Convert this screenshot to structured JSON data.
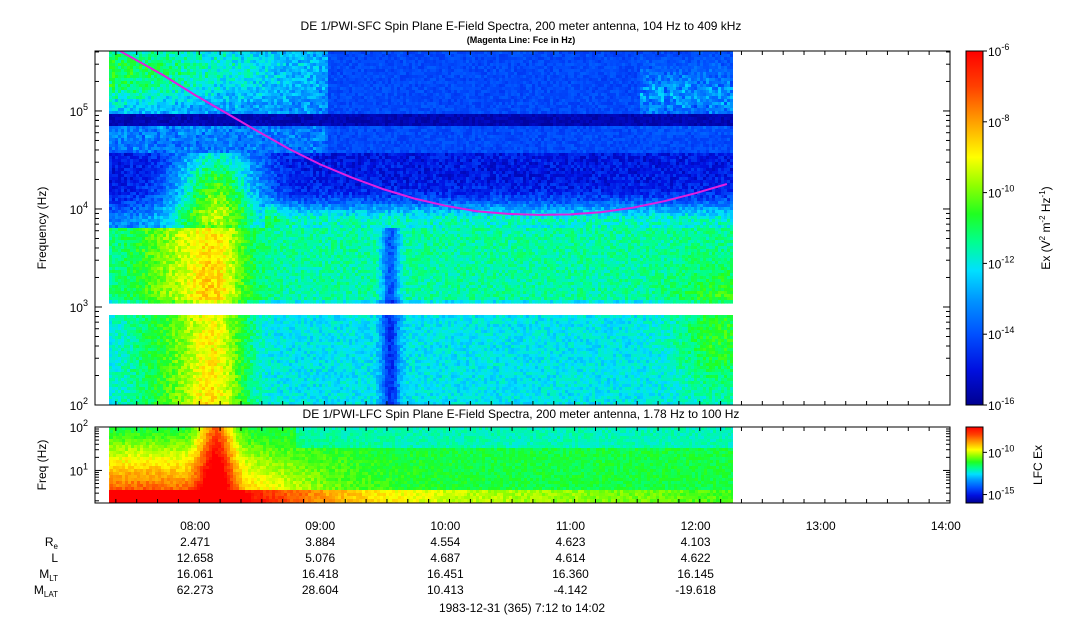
{
  "chart_data": [
    {
      "type": "heatmap",
      "title": "DE 1/PWI-SFC  Spin Plane E-Field Spectra, 200 meter antenna, 104 Hz to 409 kHz",
      "subtitle": "(Magenta Line: Fce in Hz)",
      "ylabel": "Frequency (Hz)",
      "yscale": "log",
      "ylim": [
        100,
        409000
      ],
      "yticks": [
        {
          "base": "10",
          "exp": "2",
          "value": 100
        },
        {
          "base": "10",
          "exp": "3",
          "value": 1000
        },
        {
          "base": "10",
          "exp": "4",
          "value": 10000
        },
        {
          "base": "10",
          "exp": "5",
          "value": 100000
        }
      ],
      "xlim": [
        "07:12",
        "14:02"
      ],
      "data_coverage": [
        "07:12",
        "12:17"
      ],
      "gap_frequency_hz": [
        870,
        1030
      ],
      "colorbar": {
        "label_base": "Ex (V",
        "label_exp1": "2",
        "label_mid": " m",
        "label_exp2": "-2",
        "label_mid2": " Hz",
        "label_exp3": "-1",
        "label_end": ")",
        "scale": "log",
        "range": [
          1e-16,
          1e-06
        ],
        "ticks": [
          {
            "base": "10",
            "exp": "-6",
            "value": 1e-06
          },
          {
            "base": "10",
            "exp": "-8",
            "value": 1e-08
          },
          {
            "base": "10",
            "exp": "-10",
            "value": 1e-10
          },
          {
            "base": "10",
            "exp": "-12",
            "value": 1e-12
          },
          {
            "base": "10",
            "exp": "-14",
            "value": 1e-14
          },
          {
            "base": "10",
            "exp": "-16",
            "value": 1e-16
          }
        ]
      },
      "fce_line": {
        "color": "#e020e0",
        "time": [
          "07:24",
          "07:45",
          "08:00",
          "08:15",
          "08:30",
          "08:45",
          "09:00",
          "09:15",
          "09:30",
          "09:45",
          "10:00",
          "10:15",
          "10:30",
          "10:45",
          "11:00",
          "11:15",
          "11:30",
          "11:45",
          "12:00",
          "12:15"
        ],
        "freq_hz": [
          409000,
          230000,
          145000,
          95000,
          62000,
          41000,
          28500,
          21000,
          16000,
          12800,
          10800,
          9500,
          8900,
          8700,
          8800,
          9300,
          10300,
          12000,
          14500,
          18000
        ]
      }
    },
    {
      "type": "heatmap",
      "title": "DE 1/PWI-LFC  Spin Plane E-Field Spectra, 200 meter antenna, 1.78 Hz to 100 Hz",
      "ylabel": "Freq (Hz)",
      "yscale": "log",
      "ylim": [
        1.78,
        100
      ],
      "yticks": [
        {
          "base": "10",
          "exp": "1",
          "value": 10
        },
        {
          "base": "10",
          "exp": "2",
          "value": 100
        }
      ],
      "xlim": [
        "07:12",
        "14:02"
      ],
      "data_coverage": [
        "07:12",
        "12:17"
      ],
      "colorbar": {
        "label": "LFC Ex",
        "scale": "log",
        "range": [
          1e-16,
          1e-07
        ],
        "ticks": [
          {
            "base": "10",
            "exp": "-10",
            "value": 1e-10
          },
          {
            "base": "10",
            "exp": "-15",
            "value": 1e-15
          }
        ]
      }
    }
  ],
  "time_axis": {
    "ticks": [
      "08:00",
      "09:00",
      "10:00",
      "11:00",
      "12:00",
      "13:00",
      "14:00"
    ],
    "footer": "1983-12-31 (365) 7:12 to 14:02"
  },
  "ephemeris": [
    {
      "name": "Re",
      "main": "R",
      "sub": "e",
      "values": [
        "2.471",
        "3.884",
        "4.554",
        "4.623",
        "4.103"
      ]
    },
    {
      "name": "L",
      "main": "L",
      "sub": "",
      "values": [
        "12.658",
        "5.076",
        "4.687",
        "4.614",
        "4.622"
      ]
    },
    {
      "name": "MLT",
      "main": "M",
      "sub": "LT",
      "values": [
        "16.061",
        "16.418",
        "16.451",
        "16.360",
        "16.145"
      ]
    },
    {
      "name": "MLAT",
      "main": "M",
      "sub": "LAT",
      "values": [
        "62.273",
        "28.604",
        "10.413",
        "-4.142",
        "-19.618"
      ]
    }
  ]
}
